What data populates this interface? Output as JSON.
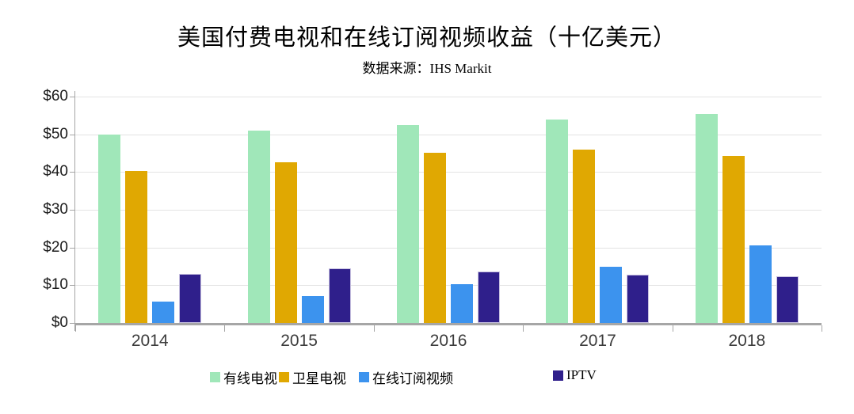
{
  "title": "美国付费电视和在线订阅视频收益（十亿美元）",
  "subtitle": "数据来源：IHS Markit",
  "chart_data": {
    "type": "bar",
    "title": "美国付费电视和在线订阅视频收益（十亿美元）",
    "subtitle": "数据来源：IHS Markit",
    "categories": [
      "2014",
      "2015",
      "2016",
      "2017",
      "2018"
    ],
    "series": [
      {
        "name": "有线电视",
        "color": "#A0E7B9",
        "values": [
          50.0,
          51.0,
          52.5,
          54.0,
          55.3
        ]
      },
      {
        "name": "卫星电视",
        "color": "#E0A802",
        "values": [
          40.3,
          42.6,
          45.1,
          45.9,
          44.3
        ]
      },
      {
        "name": "在线订阅视频",
        "color": "#3C93EE",
        "values": [
          5.7,
          7.1,
          10.3,
          14.8,
          20.6
        ]
      },
      {
        "name": "IPTV",
        "color": "#2F1F8B",
        "border_color": "#C7C1E0",
        "values": [
          13.0,
          14.5,
          13.7,
          12.9,
          12.4
        ]
      }
    ],
    "xlabel": "",
    "ylabel": "",
    "ylim": [
      0,
      60
    ],
    "y_tick_step": 10,
    "y_tick_labels": [
      "$0",
      "$10",
      "$20",
      "$30",
      "$40",
      "$50",
      "$60"
    ],
    "grid": true,
    "legend_position": "bottom"
  },
  "colors": {
    "gridline": "#E3E3E3",
    "axis": "#A6A6A6",
    "title_text": "#000000",
    "axis_label_text": "#3B3B3B"
  }
}
